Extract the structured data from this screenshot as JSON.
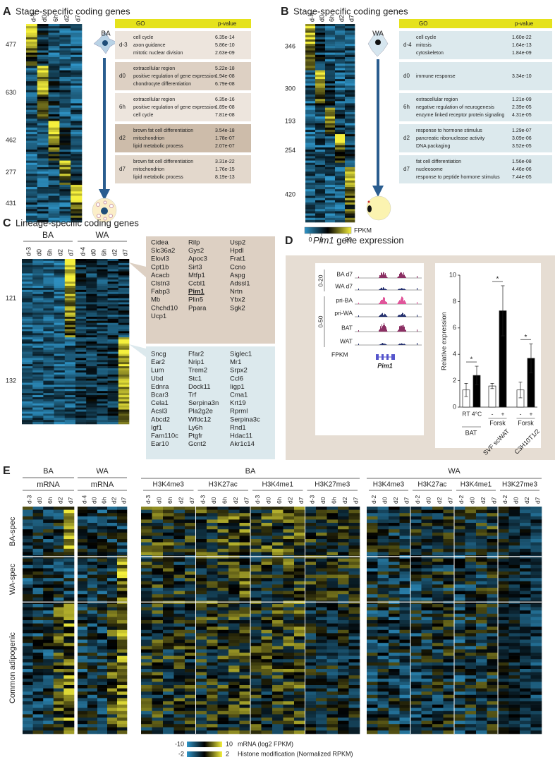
{
  "panel_a": {
    "letter": "A",
    "title": "Stage-specific coding genes",
    "cell": "BA",
    "columns": [
      "d-3",
      "d0",
      "6h",
      "d2",
      "d7"
    ],
    "row_counts": [
      477,
      630,
      462,
      277,
      431
    ],
    "table": {
      "header": [
        "GO",
        "p-value"
      ],
      "groups": [
        {
          "stage": "d-3",
          "rows": [
            [
              "cell cycle",
              "6.35e-14"
            ],
            [
              "axon guidance",
              "5.86e-10"
            ],
            [
              "mitotic nuclear division",
              "2.63e-09"
            ]
          ]
        },
        {
          "stage": "d0",
          "rows": [
            [
              "extracellular region",
              "5.22e-18"
            ],
            [
              "positive regulation of gene expression",
              "1.94e-08"
            ],
            [
              "chondrocyte differentiation",
              "6.79e-08"
            ]
          ]
        },
        {
          "stage": "6h",
          "rows": [
            [
              "extracellular region",
              "6.35e-16"
            ],
            [
              "positive regulation of gene expression",
              "1.89e-08"
            ],
            [
              "cell cycle",
              "7.81e-08"
            ]
          ]
        },
        {
          "stage": "d2",
          "rows": [
            [
              "brown fat cell differentiation",
              "3.54e-18"
            ],
            [
              "mitochondrion",
              "1.78e-07"
            ],
            [
              "lipid metabolic process",
              "2.07e-07"
            ]
          ]
        },
        {
          "stage": "d7",
          "rows": [
            [
              "brown fat cell differentiation",
              "3.31e-22"
            ],
            [
              "mitochondrion",
              "1.76e-15"
            ],
            [
              "lipid metabolic process",
              "8.19e-13"
            ]
          ]
        }
      ]
    }
  },
  "panel_b": {
    "letter": "B",
    "title": "Stage-specific coding genes",
    "cell": "WA",
    "columns": [
      "d-4",
      "d0",
      "6h",
      "d2",
      "d7"
    ],
    "row_counts": [
      346,
      300,
      193,
      254,
      420
    ],
    "colorbar": {
      "ticks": [
        0,
        1,
        20
      ],
      "unit": "FPKM"
    },
    "table": {
      "header": [
        "GO",
        "p-value"
      ],
      "groups": [
        {
          "stage": "d-4",
          "rows": [
            [
              "cell cycle",
              "1.60e-22"
            ],
            [
              "mitosis",
              "1.64e-13"
            ],
            [
              "cytoskeleton",
              "1.84e-09"
            ]
          ]
        },
        {
          "stage": "d0",
          "rows": [
            [
              "immune response",
              "3.34e-10"
            ]
          ]
        },
        {
          "stage": "6h",
          "rows": [
            [
              "extracellular region",
              "1.21e-09"
            ],
            [
              "negative regulation of neurogenesis",
              "2.39e-05"
            ],
            [
              "enzyme linked receptor protein signaling",
              "4.31e-05"
            ]
          ]
        },
        {
          "stage": "d2",
          "rows": [
            [
              "response to hormone stimulus",
              "1.29e-07"
            ],
            [
              "pancreatic ribonuclease activity",
              "3.09e-06"
            ],
            [
              "DNA packaging",
              "3.52e-05"
            ]
          ]
        },
        {
          "stage": "d7",
          "rows": [
            [
              "fat cell differentiation",
              "1.56e-08"
            ],
            [
              "nucleosome",
              "4.46e-06"
            ],
            [
              "response to peptide hormone stimulus",
              "7.44e-05"
            ]
          ]
        }
      ]
    }
  },
  "panel_c": {
    "letter": "C",
    "title": "Lineage-specific coding genes",
    "groups": [
      {
        "name": "BA",
        "columns": [
          "d-3",
          "d0",
          "6h",
          "d2",
          "d7"
        ]
      },
      {
        "name": "WA",
        "columns": [
          "d-4",
          "d0",
          "6h",
          "d2",
          "d7"
        ]
      }
    ],
    "row_counts": [
      121,
      132
    ],
    "ba_genes": [
      [
        "Cidea",
        "Slc36a2",
        "Elovl3",
        "Cpt1b",
        "Acacb",
        "Clstn3",
        "Fabp3",
        "Mb",
        "Chchd10",
        "Ucp1"
      ],
      [
        "Rilp",
        "Gys2",
        "Apoc3",
        "Sirt3",
        "Mtfp1",
        "Ccbl1",
        "Pim1",
        "Plin5",
        "Ppara"
      ],
      [
        "Usp2",
        "Hpdl",
        "Frat1",
        "Ccno",
        "Aspg",
        "Adssl1",
        "Nrtn",
        "Ybx2",
        "Sgk2"
      ]
    ],
    "wa_genes": [
      [
        "Sncg",
        "Ear2",
        "Lum",
        "Ubd",
        "Ednra",
        "Bcar3",
        "Cela1",
        "Acsl3",
        "Abcd2",
        "Igf1",
        "Fam110c",
        "Ear10"
      ],
      [
        "Ffar2",
        "Nrip1",
        "Trem2",
        "Stc1",
        "Dock11",
        "Trf",
        "Serpina3n",
        "Pla2g2e",
        "Wfdc12",
        "Ly6h",
        "Ptgfr",
        "Gcnt2"
      ],
      [
        "Siglec1",
        "Mr1",
        "Srpx2",
        "Ccl6",
        "Iigp1",
        "Cma1",
        "Krt19",
        "Rprml",
        "Serpina3c",
        "Rnd1",
        "Hdac11",
        "Akr1c14"
      ]
    ],
    "highlight": {
      "red": [
        "Cidea",
        "Elovl3",
        "Ucp1",
        "Ppara",
        "Nrip1"
      ],
      "bold": [
        "Pim1"
      ],
      "color": "#c0392b"
    }
  },
  "panel_d": {
    "letter": "D",
    "title": {
      "gene": "Pim1",
      "text": " gene expression"
    },
    "tracks": [
      "BA d7",
      "WA d7",
      "pri-BA",
      "pri-WA",
      "BAT",
      "WAT"
    ],
    "scales": [
      "0-20",
      "0-50"
    ],
    "unit": "FPKM",
    "gene": "Pim1"
  },
  "chart_data": {
    "type": "bar",
    "ylabel": "Relative expression",
    "categories": [
      "RT",
      "4°C",
      "-",
      "+",
      "-",
      "+"
    ],
    "values": [
      1.3,
      2.4,
      1.6,
      7.3,
      1.3,
      3.7
    ],
    "errors": [
      0.5,
      0.7,
      0.2,
      1.9,
      0.6,
      1.1
    ],
    "colors": [
      "#ffffff",
      "#000000",
      "#ffffff",
      "#000000",
      "#ffffff",
      "#000000"
    ],
    "groups": [
      "BAT",
      "SVF scWAT",
      "C3H10T1/2"
    ],
    "treatment": [
      "Forsk",
      "Forsk"
    ],
    "annotations": [
      "*",
      "*",
      "*"
    ],
    "ylim": [
      0,
      10
    ],
    "yticks": [
      0,
      2,
      4,
      6,
      8,
      10
    ]
  },
  "panel_e": {
    "letter": "E",
    "mrna": [
      {
        "lineage": "BA",
        "label": "mRNA",
        "columns": [
          "d-3",
          "d0",
          "6h",
          "d2",
          "d7"
        ]
      },
      {
        "lineage": "WA",
        "label": "mRNA",
        "columns": [
          "d-4",
          "d0",
          "6h",
          "d2",
          "d7"
        ]
      }
    ],
    "histone": [
      {
        "lineage": "BA",
        "marks": [
          "H3K4me3",
          "H3K27ac",
          "H3K4me1",
          "H3K27me3"
        ],
        "columns": [
          "d-3",
          "d0",
          "6h",
          "d2",
          "d7"
        ]
      },
      {
        "lineage": "WA",
        "marks": [
          "H3K4me3",
          "H3K27ac",
          "H3K4me1",
          "H3K27me3"
        ],
        "columns": [
          "d-2",
          "d0",
          "d2",
          "d7"
        ]
      }
    ],
    "row_groups": [
      "BA-spec",
      "WA-spec",
      "Common adipogenic"
    ],
    "legend": [
      {
        "min": -10,
        "max": 10,
        "label": "mRNA (log2 FPKM)"
      },
      {
        "min": -2,
        "max": 2,
        "label": "Histone modification (Normalized RPKM)"
      }
    ]
  }
}
